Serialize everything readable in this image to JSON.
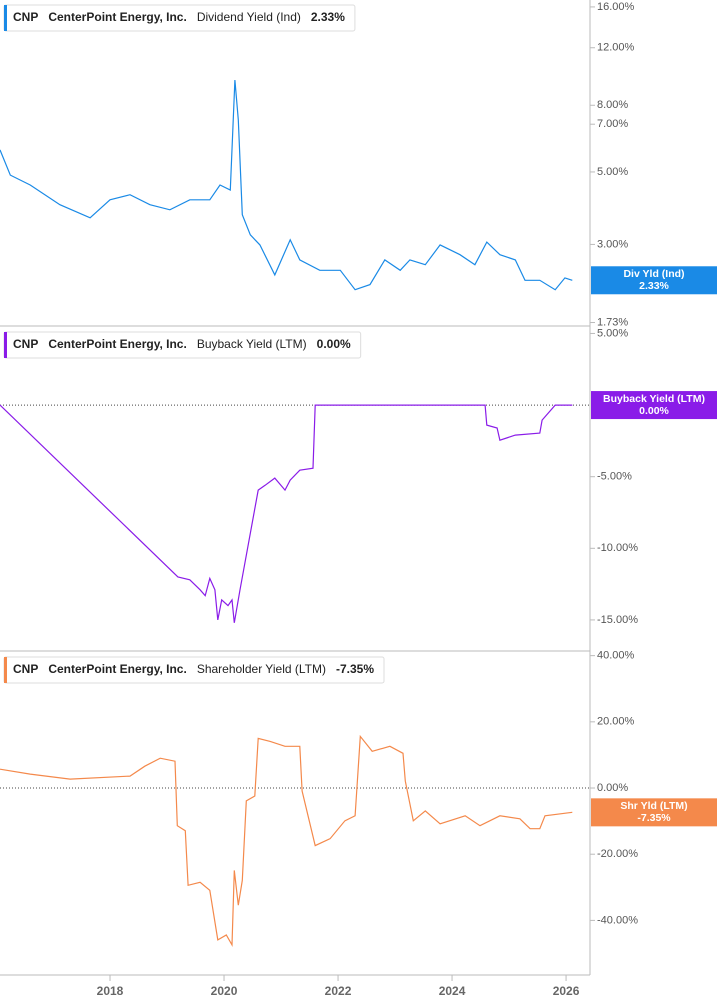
{
  "chart_data": [
    {
      "type": "line",
      "ticker": "CNP",
      "company": "CenterPoint Energy, Inc.",
      "log_scale": true,
      "xlim": [
        2016.07,
        2026.42
      ],
      "ylim": [
        1.7,
        16.8
      ],
      "yticks": [
        {
          "value": 16,
          "label": "16.00%"
        },
        {
          "value": 12,
          "label": "12.00%"
        },
        {
          "value": 8,
          "label": "8.00%"
        },
        {
          "value": 7,
          "label": "7.00%"
        },
        {
          "value": 5,
          "label": "5.00%"
        },
        {
          "value": 3,
          "label": "3.00%"
        },
        {
          "value": 1.73,
          "label": "1.73%"
        }
      ],
      "series": [
        {
          "name": "Dividend Yield (Ind)",
          "color": "#1a8ae6",
          "x": [
            2016.07,
            2016.25,
            2016.6,
            2017.12,
            2017.65,
            2018.0,
            2018.35,
            2018.7,
            2019.05,
            2019.4,
            2019.75,
            2019.93,
            2020.11,
            2020.19,
            2020.25,
            2020.32,
            2020.46,
            2020.63,
            2020.89,
            2021.16,
            2021.33,
            2021.68,
            2022.04,
            2022.3,
            2022.56,
            2022.82,
            2023.09,
            2023.26,
            2023.53,
            2023.79,
            2024.14,
            2024.4,
            2024.61,
            2024.84,
            2025.11,
            2025.28,
            2025.54,
            2025.81,
            2025.98,
            2026.11
          ],
          "values": [
            5.84,
            4.89,
            4.56,
            3.97,
            3.62,
            4.11,
            4.26,
            3.97,
            3.83,
            4.11,
            4.11,
            4.56,
            4.4,
            9.56,
            7.22,
            3.7,
            3.21,
            2.99,
            2.42,
            3.1,
            2.69,
            2.5,
            2.5,
            2.18,
            2.26,
            2.69,
            2.5,
            2.69,
            2.6,
            2.99,
            2.79,
            2.6,
            3.05,
            2.79,
            2.69,
            2.33,
            2.33,
            2.18,
            2.37,
            2.33
          ]
        }
      ],
      "current": {
        "name": "Div Yld (Ind)",
        "value": 2.33,
        "label": "2.33%"
      }
    },
    {
      "type": "line",
      "ticker": "CNP",
      "company": "CenterPoint Energy, Inc.",
      "log_scale": false,
      "xlim": [
        2016.07,
        2026.42
      ],
      "ylim": [
        -17.1,
        5.45
      ],
      "reference_line": 0,
      "yticks": [
        {
          "value": 5,
          "label": "5.00%"
        },
        {
          "value": -5,
          "label": "-5.00%"
        },
        {
          "value": -10,
          "label": "-10.00%"
        },
        {
          "value": -15,
          "label": "-15.00%"
        }
      ],
      "series": [
        {
          "name": "Buyback Yield (LTM)",
          "color": "#8a1ce8",
          "x": [
            2016.07,
            2019.19,
            2019.4,
            2019.58,
            2019.67,
            2019.75,
            2019.84,
            2019.89,
            2019.96,
            2020.07,
            2020.14,
            2020.18,
            2020.28,
            2020.6,
            2020.72,
            2020.89,
            2021.07,
            2021.16,
            2021.33,
            2021.56,
            2021.6,
            2024.58,
            2024.61,
            2024.79,
            2024.84,
            2025.11,
            2025.54,
            2025.58,
            2025.81,
            2026.11
          ],
          "values": [
            0,
            -12.0,
            -12.2,
            -12.9,
            -13.3,
            -12.1,
            -12.9,
            -15.0,
            -13.6,
            -14.0,
            -13.6,
            -15.2,
            -12.9,
            -5.94,
            -5.6,
            -5.1,
            -5.94,
            -5.24,
            -4.55,
            -4.41,
            0,
            0,
            -1.4,
            -1.6,
            -2.45,
            -2.1,
            -1.96,
            -1.05,
            0,
            0
          ]
        }
      ],
      "current": {
        "name": "Buyback Yield (LTM)",
        "value": 0,
        "label": "0.00%"
      }
    },
    {
      "type": "line",
      "ticker": "CNP",
      "company": "CenterPoint Energy, Inc.",
      "log_scale": false,
      "xlim": [
        2016.07,
        2026.42
      ],
      "ylim": [
        -56.5,
        41.1
      ],
      "reference_line": 0,
      "xticks": [
        2018,
        2020,
        2022,
        2024,
        2026
      ],
      "yticks": [
        {
          "value": 40,
          "label": "40.00%"
        },
        {
          "value": 20,
          "label": "20.00%"
        },
        {
          "value": 0,
          "label": "0.00%"
        },
        {
          "value": -20,
          "label": "-20.00%"
        },
        {
          "value": -40,
          "label": "-40.00%"
        }
      ],
      "series": [
        {
          "name": "Shareholder Yield (LTM)",
          "color": "#f4894b",
          "x": [
            2016.07,
            2016.6,
            2017.3,
            2018.35,
            2018.61,
            2018.88,
            2019.14,
            2019.18,
            2019.32,
            2019.37,
            2019.58,
            2019.75,
            2019.89,
            2020.04,
            2020.14,
            2020.18,
            2020.25,
            2020.32,
            2020.39,
            2020.54,
            2020.6,
            2020.81,
            2021.07,
            2021.33,
            2021.37,
            2021.6,
            2021.86,
            2022.12,
            2022.3,
            2022.39,
            2022.6,
            2022.91,
            2023.14,
            2023.18,
            2023.32,
            2023.53,
            2023.79,
            2024.23,
            2024.49,
            2024.84,
            2025.19,
            2025.37,
            2025.54,
            2025.63,
            2026.11
          ],
          "values": [
            5.7,
            4.2,
            2.7,
            3.6,
            6.6,
            9.0,
            8.1,
            -11.4,
            -12.9,
            -29.4,
            -28.5,
            -30.9,
            -45.9,
            -44.4,
            -47.4,
            -24.9,
            -35.4,
            -27.9,
            -3.9,
            -2.4,
            15.0,
            14.1,
            12.6,
            12.6,
            -0.9,
            -17.4,
            -15.3,
            -9.9,
            -8.4,
            15.6,
            11.1,
            12.6,
            10.5,
            2.1,
            -9.9,
            -6.9,
            -10.8,
            -8.4,
            -11.4,
            -8.4,
            -9.3,
            -12.3,
            -12.3,
            -8.4,
            -7.35
          ]
        }
      ],
      "current": {
        "name": "Shr Yld (LTM)",
        "value": -7.35,
        "label": "-7.35%"
      }
    }
  ]
}
